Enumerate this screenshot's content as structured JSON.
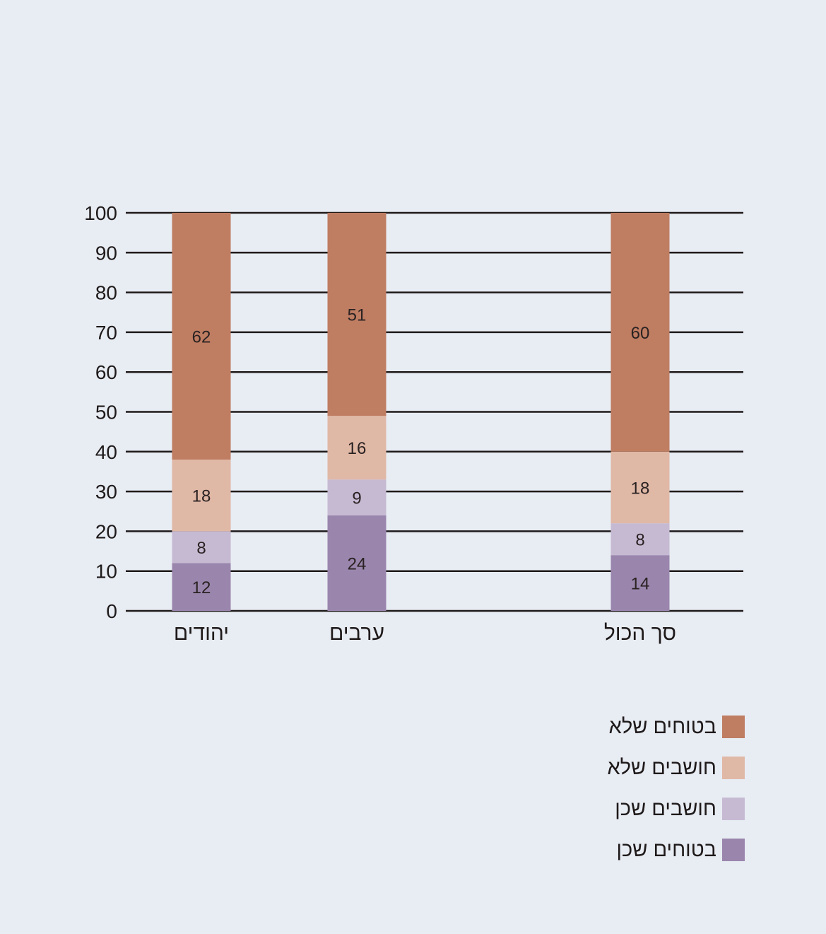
{
  "chart_data": {
    "type": "bar",
    "stacked": true,
    "categories": [
      "יהודים",
      "ערבים",
      "סך הכול"
    ],
    "series": [
      {
        "name": "בטוחים שכן",
        "color": "#9a86ad",
        "values": [
          12,
          24,
          14
        ]
      },
      {
        "name": "חושבים שכן",
        "color": "#c6bad3",
        "values": [
          8,
          9,
          8
        ]
      },
      {
        "name": "חושבים שלא",
        "color": "#e0b8a6",
        "values": [
          18,
          16,
          18
        ]
      },
      {
        "name": "בטוחים שלא",
        "color": "#bf7d62",
        "values": [
          62,
          51,
          60
        ]
      }
    ],
    "yticks": [
      0,
      10,
      20,
      30,
      40,
      50,
      60,
      70,
      80,
      90,
      100
    ],
    "ylim": [
      0,
      100
    ],
    "grid": true,
    "legend_position": "bottom-right"
  },
  "legend": {
    "items": [
      {
        "label": "בטוחים שלא",
        "color": "#bf7d62"
      },
      {
        "label": "חושבים שלא",
        "color": "#e0b8a6"
      },
      {
        "label": "חושבים שכן",
        "color": "#c6bad3"
      },
      {
        "label": "בטוחים שכן",
        "color": "#9a86ad"
      }
    ]
  }
}
